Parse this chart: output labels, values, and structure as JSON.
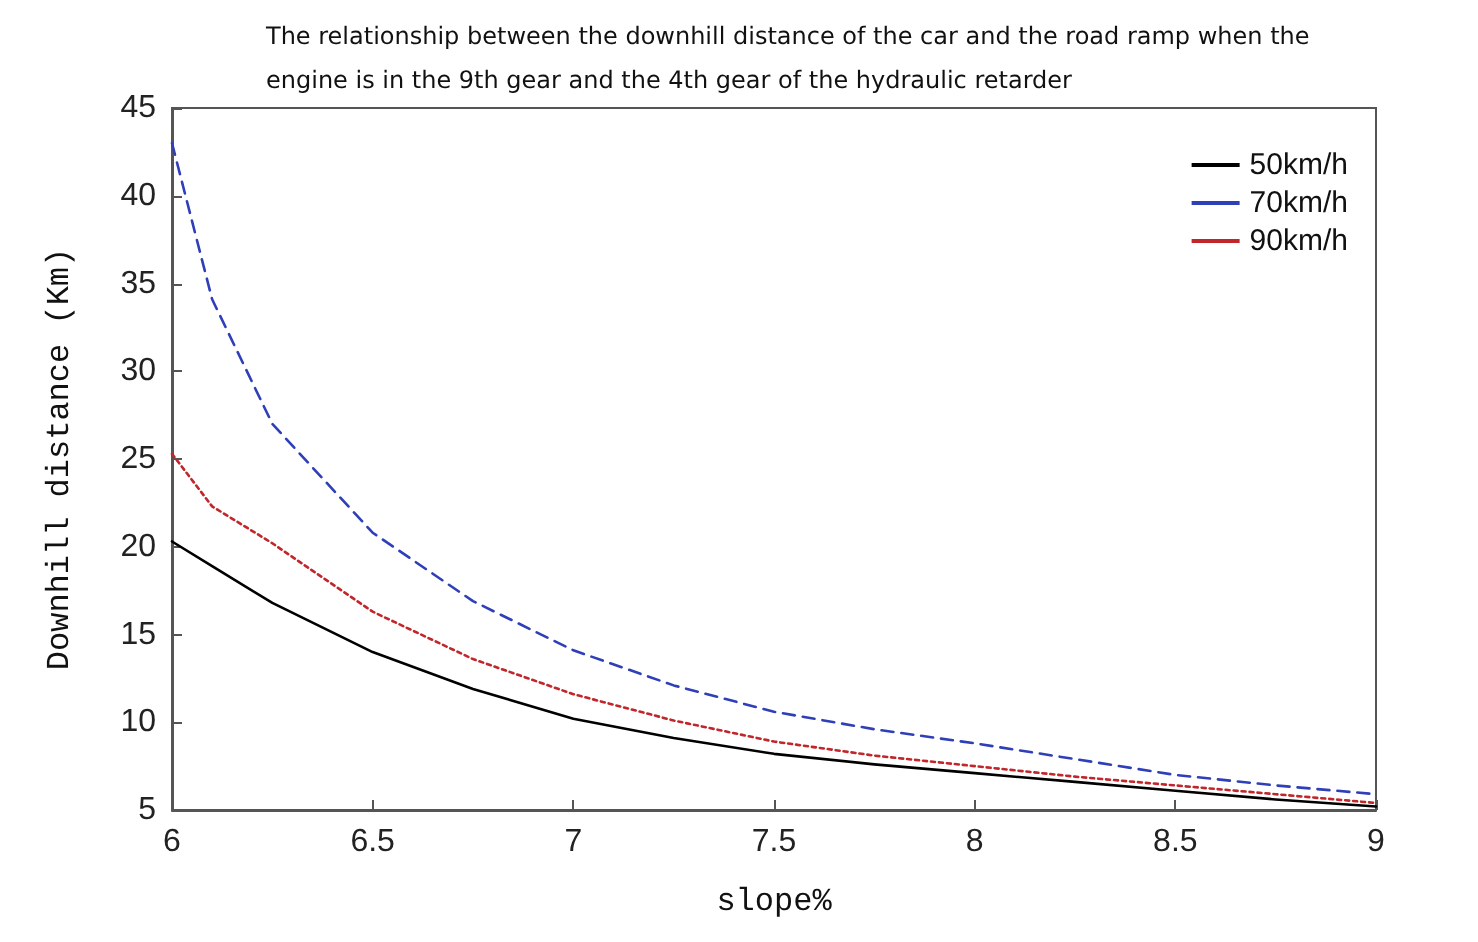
{
  "chart_data": {
    "type": "line",
    "title": "The relationship between the downhill distance of the car and the road ramp when the engine is in the 9th gear and the 4th gear of the hydraulic retarder",
    "xlabel": "slope%",
    "ylabel": "Downhill distance (Km)",
    "x": [
      6,
      6.1,
      6.25,
      6.5,
      6.75,
      7,
      7.25,
      7.5,
      7.75,
      8,
      8.25,
      8.5,
      8.75,
      9
    ],
    "series": [
      {
        "name": "50km/h",
        "color": "#000000",
        "line_style": "solid",
        "values": [
          20.3,
          18.9,
          16.8,
          14.0,
          11.9,
          10.2,
          9.1,
          8.2,
          7.6,
          7.1,
          6.6,
          6.1,
          5.6,
          5.2
        ]
      },
      {
        "name": "70km/h",
        "color": "#2f3fb8",
        "line_style": "dashed",
        "values": [
          43,
          34.1,
          27,
          20.8,
          16.9,
          14.1,
          12.1,
          10.6,
          9.6,
          8.8,
          7.9,
          7.0,
          6.4,
          5.9
        ]
      },
      {
        "name": "90km/h",
        "color": "#c0262a",
        "line_style": "dotted",
        "values": [
          25.3,
          22.3,
          20.2,
          16.3,
          13.6,
          11.6,
          10.1,
          8.9,
          8.1,
          7.5,
          6.9,
          6.4,
          5.9,
          5.4
        ]
      }
    ],
    "xlim": [
      6,
      9
    ],
    "xticks": [
      6,
      6.5,
      7,
      7.5,
      8,
      8.5,
      9
    ],
    "ylim": [
      5,
      45
    ],
    "yticks": [
      5,
      10,
      15,
      20,
      25,
      30,
      35,
      40,
      45
    ],
    "grid": false,
    "legend": "top right",
    "marker": "none"
  }
}
